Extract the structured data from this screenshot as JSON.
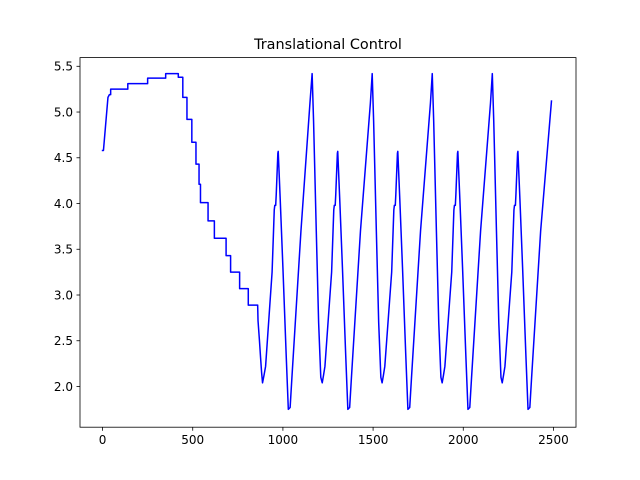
{
  "chart_data": {
    "type": "line",
    "title": "Translational Control",
    "xlabel": "",
    "ylabel": "",
    "xlim": [
      -125,
      2625
    ],
    "ylim": [
      1.555,
      5.595
    ],
    "x_ticks": [
      0,
      500,
      1000,
      1500,
      2000,
      2500
    ],
    "y_ticks": [
      2.0,
      2.5,
      3.0,
      3.5,
      4.0,
      4.5,
      5.0,
      5.5
    ],
    "x_tick_labels": [
      "0",
      "500",
      "1000",
      "1500",
      "2000",
      "2500"
    ],
    "y_tick_labels": [
      "2.0",
      "2.5",
      "3.0",
      "3.5",
      "4.0",
      "4.5",
      "5.0",
      "5.5"
    ],
    "grid": false,
    "series": [
      {
        "color": "#0000ff",
        "points": [
          [
            0,
            4.58
          ],
          [
            5,
            4.58
          ],
          [
            30,
            5.16
          ],
          [
            38,
            5.19
          ],
          [
            45,
            5.19
          ],
          [
            45,
            5.25
          ],
          [
            140,
            5.25
          ],
          [
            140,
            5.31
          ],
          [
            250,
            5.31
          ],
          [
            250,
            5.37
          ],
          [
            350,
            5.37
          ],
          [
            350,
            5.42
          ],
          [
            420,
            5.42
          ],
          [
            420,
            5.38
          ],
          [
            445,
            5.38
          ],
          [
            445,
            5.16
          ],
          [
            468,
            5.16
          ],
          [
            468,
            4.92
          ],
          [
            495,
            4.92
          ],
          [
            495,
            4.67
          ],
          [
            518,
            4.67
          ],
          [
            518,
            4.43
          ],
          [
            535,
            4.43
          ],
          [
            535,
            4.21
          ],
          [
            543,
            4.21
          ],
          [
            543,
            4.01
          ],
          [
            585,
            4.01
          ],
          [
            585,
            3.81
          ],
          [
            620,
            3.81
          ],
          [
            620,
            3.62
          ],
          [
            685,
            3.62
          ],
          [
            685,
            3.43
          ],
          [
            710,
            3.43
          ],
          [
            710,
            3.25
          ],
          [
            760,
            3.25
          ],
          [
            760,
            3.07
          ],
          [
            808,
            3.07
          ],
          [
            808,
            2.89
          ],
          [
            860,
            2.89
          ],
          [
            862,
            2.72
          ],
          [
            870,
            2.5
          ],
          [
            876,
            2.32
          ],
          [
            882,
            2.15
          ],
          [
            887,
            2.04
          ],
          [
            895,
            2.12
          ],
          [
            904,
            2.22
          ],
          [
            940,
            3.25
          ],
          [
            948,
            3.7
          ],
          [
            952,
            3.93
          ],
          [
            955,
            3.98
          ],
          [
            960,
            3.98
          ],
          [
            963,
            4.1
          ],
          [
            972,
            4.55
          ],
          [
            974,
            4.57
          ],
          [
            985,
            4.05
          ],
          [
            1000,
            3.3
          ],
          [
            1018,
            2.35
          ],
          [
            1030,
            1.75
          ],
          [
            1040,
            1.77
          ],
          [
            1050,
            2.1
          ],
          [
            1100,
            3.7
          ],
          [
            1150,
            5.1
          ],
          [
            1162,
            5.42
          ],
          [
            1170,
            4.9
          ],
          [
            1185,
            3.7
          ],
          [
            1198,
            2.7
          ],
          [
            1210,
            2.1
          ],
          [
            1218,
            2.04
          ],
          [
            1225,
            2.12
          ],
          [
            1233,
            2.22
          ],
          [
            1270,
            3.25
          ],
          [
            1278,
            3.7
          ],
          [
            1282,
            3.93
          ],
          [
            1285,
            3.98
          ],
          [
            1290,
            3.98
          ],
          [
            1293,
            4.1
          ],
          [
            1302,
            4.55
          ],
          [
            1304,
            4.57
          ],
          [
            1315,
            4.05
          ],
          [
            1330,
            3.3
          ],
          [
            1348,
            2.35
          ],
          [
            1360,
            1.75
          ],
          [
            1370,
            1.77
          ],
          [
            1380,
            2.1
          ],
          [
            1430,
            3.7
          ],
          [
            1485,
            5.1
          ],
          [
            1495,
            5.42
          ],
          [
            1503,
            4.9
          ],
          [
            1518,
            3.7
          ],
          [
            1531,
            2.7
          ],
          [
            1543,
            2.1
          ],
          [
            1550,
            2.04
          ],
          [
            1557,
            2.12
          ],
          [
            1565,
            2.22
          ],
          [
            1603,
            3.25
          ],
          [
            1611,
            3.7
          ],
          [
            1615,
            3.93
          ],
          [
            1618,
            3.98
          ],
          [
            1623,
            3.98
          ],
          [
            1626,
            4.1
          ],
          [
            1635,
            4.55
          ],
          [
            1637,
            4.57
          ],
          [
            1648,
            4.05
          ],
          [
            1663,
            3.3
          ],
          [
            1681,
            2.35
          ],
          [
            1693,
            1.75
          ],
          [
            1703,
            1.77
          ],
          [
            1713,
            2.1
          ],
          [
            1763,
            3.7
          ],
          [
            1818,
            5.1
          ],
          [
            1828,
            5.42
          ],
          [
            1836,
            4.9
          ],
          [
            1851,
            3.7
          ],
          [
            1864,
            2.7
          ],
          [
            1876,
            2.1
          ],
          [
            1883,
            2.04
          ],
          [
            1890,
            2.12
          ],
          [
            1898,
            2.22
          ],
          [
            1936,
            3.25
          ],
          [
            1944,
            3.7
          ],
          [
            1948,
            3.93
          ],
          [
            1951,
            3.98
          ],
          [
            1956,
            3.98
          ],
          [
            1959,
            4.1
          ],
          [
            1968,
            4.55
          ],
          [
            1970,
            4.57
          ],
          [
            1981,
            4.05
          ],
          [
            1996,
            3.3
          ],
          [
            2014,
            2.35
          ],
          [
            2026,
            1.75
          ],
          [
            2036,
            1.77
          ],
          [
            2046,
            2.1
          ],
          [
            2096,
            3.7
          ],
          [
            2151,
            5.1
          ],
          [
            2161,
            5.42
          ],
          [
            2169,
            4.9
          ],
          [
            2184,
            3.7
          ],
          [
            2197,
            2.7
          ],
          [
            2209,
            2.1
          ],
          [
            2216,
            2.04
          ],
          [
            2223,
            2.12
          ],
          [
            2231,
            2.22
          ],
          [
            2269,
            3.25
          ],
          [
            2277,
            3.7
          ],
          [
            2281,
            3.93
          ],
          [
            2284,
            3.98
          ],
          [
            2289,
            3.98
          ],
          [
            2292,
            4.1
          ],
          [
            2301,
            4.55
          ],
          [
            2303,
            4.57
          ],
          [
            2314,
            4.05
          ],
          [
            2329,
            3.3
          ],
          [
            2347,
            2.35
          ],
          [
            2359,
            1.75
          ],
          [
            2369,
            1.77
          ],
          [
            2379,
            2.1
          ],
          [
            2429,
            3.7
          ],
          [
            2489,
            5.12
          ]
        ]
      }
    ]
  }
}
